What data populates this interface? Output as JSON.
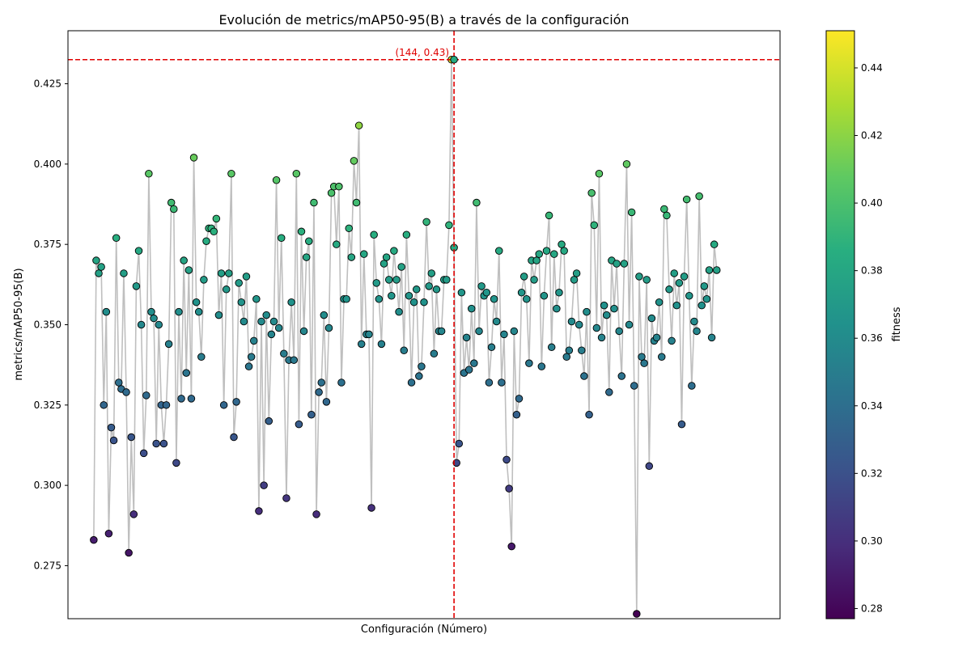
{
  "chart_data": {
    "type": "scatter",
    "title": "Evolución de metrics/mAP50-95(B) a través de la configuración",
    "xlabel": "Configuración (Número)",
    "ylabel": "metrics/mAP50-95(B)",
    "colorbar_label": "fitness",
    "colormap": "viridis",
    "color_range": [
      0.277,
      0.451
    ],
    "colorbar_ticks": [
      "0.28",
      "0.30",
      "0.32",
      "0.34",
      "0.36",
      "0.38",
      "0.40",
      "0.42",
      "0.44"
    ],
    "ylim": [
      0.2585,
      0.4415
    ],
    "xlim": [
      -10.3,
      274.3
    ],
    "yticks": [
      "0.275",
      "0.300",
      "0.325",
      "0.350",
      "0.375",
      "0.400",
      "0.425"
    ],
    "x_ticks_shown": false,
    "grid": false,
    "line_color": "#bfbfbf",
    "highlight": {
      "x": 144,
      "y": 0.4325,
      "label": "(144, 0.43)",
      "color": "#e00000",
      "style": "dashed crosshair"
    },
    "y": [
      0.283,
      0.37,
      0.366,
      0.368,
      0.325,
      0.354,
      0.285,
      0.318,
      0.314,
      0.377,
      0.332,
      0.33,
      0.366,
      0.329,
      0.279,
      0.315,
      0.291,
      0.362,
      0.373,
      0.35,
      0.31,
      0.328,
      0.397,
      0.354,
      0.352,
      0.313,
      0.35,
      0.325,
      0.313,
      0.325,
      0.344,
      0.388,
      0.386,
      0.307,
      0.354,
      0.327,
      0.37,
      0.335,
      0.367,
      0.327,
      0.402,
      0.357,
      0.354,
      0.34,
      0.364,
      0.376,
      0.38,
      0.38,
      0.379,
      0.383,
      0.353,
      0.366,
      0.325,
      0.361,
      0.366,
      0.397,
      0.315,
      0.326,
      0.363,
      0.357,
      0.351,
      0.365,
      0.337,
      0.34,
      0.345,
      0.358,
      0.292,
      0.351,
      0.3,
      0.353,
      0.32,
      0.347,
      0.351,
      0.395,
      0.349,
      0.377,
      0.341,
      0.296,
      0.339,
      0.357,
      0.339,
      0.397,
      0.319,
      0.379,
      0.348,
      0.371,
      0.376,
      0.322,
      0.388,
      0.291,
      0.329,
      0.332,
      0.353,
      0.326,
      0.349,
      0.391,
      0.393,
      0.375,
      0.393,
      0.332,
      0.358,
      0.358,
      0.38,
      0.371,
      0.401,
      0.388,
      0.412,
      0.344,
      0.372,
      0.347,
      0.347,
      0.293,
      0.378,
      0.363,
      0.358,
      0.344,
      0.369,
      0.371,
      0.364,
      0.359,
      0.373,
      0.364,
      0.354,
      0.368,
      0.342,
      0.378,
      0.359,
      0.332,
      0.357,
      0.361,
      0.334,
      0.337,
      0.357,
      0.382,
      0.362,
      0.366,
      0.341,
      0.361,
      0.348,
      0.348,
      0.364,
      0.364,
      0.381,
      0.4325,
      0.374,
      0.307,
      0.313,
      0.36,
      0.335,
      0.346,
      0.336,
      0.355,
      0.338,
      0.388,
      0.348,
      0.362,
      0.359,
      0.36,
      0.332,
      0.343,
      0.358,
      0.351,
      0.373,
      0.332,
      0.347,
      0.308,
      0.299,
      0.281,
      0.348,
      0.322,
      0.327,
      0.36,
      0.365,
      0.358,
      0.338,
      0.37,
      0.364,
      0.37,
      0.372,
      0.337,
      0.359,
      0.373,
      0.384,
      0.343,
      0.372,
      0.355,
      0.36,
      0.375,
      0.373,
      0.34,
      0.342,
      0.351,
      0.364,
      0.366,
      0.35,
      0.342,
      0.334,
      0.354,
      0.322,
      0.391,
      0.381,
      0.349,
      0.397,
      0.346,
      0.356,
      0.353,
      0.329,
      0.37,
      0.355,
      0.369,
      0.348,
      0.334,
      0.369,
      0.4,
      0.35,
      0.385,
      0.331,
      0.26,
      0.365,
      0.34,
      0.338,
      0.364,
      0.306,
      0.352,
      0.345,
      0.346,
      0.357,
      0.34,
      0.386,
      0.384,
      0.361,
      0.345,
      0.366,
      0.356,
      0.363,
      0.319,
      0.365,
      0.389,
      0.359,
      0.331,
      0.351,
      0.348,
      0.39,
      0.356,
      0.362,
      0.358,
      0.367,
      0.346,
      0.375,
      0.367
    ],
    "fitness": [
      0.291,
      0.378,
      0.375,
      0.376,
      0.334,
      0.362,
      0.293,
      0.327,
      0.322,
      0.386,
      0.34,
      0.338,
      0.374,
      0.337,
      0.287,
      0.323,
      0.3,
      0.37,
      0.381,
      0.358,
      0.318,
      0.337,
      0.405,
      0.362,
      0.361,
      0.321,
      0.358,
      0.333,
      0.321,
      0.334,
      0.352,
      0.396,
      0.394,
      0.315,
      0.362,
      0.336,
      0.378,
      0.344,
      0.375,
      0.336,
      0.41,
      0.365,
      0.362,
      0.349,
      0.372,
      0.384,
      0.388,
      0.388,
      0.387,
      0.391,
      0.361,
      0.374,
      0.334,
      0.369,
      0.374,
      0.405,
      0.323,
      0.335,
      0.371,
      0.366,
      0.359,
      0.373,
      0.345,
      0.348,
      0.353,
      0.367,
      0.3,
      0.359,
      0.308,
      0.361,
      0.329,
      0.355,
      0.359,
      0.404,
      0.357,
      0.385,
      0.349,
      0.304,
      0.347,
      0.365,
      0.347,
      0.405,
      0.327,
      0.387,
      0.356,
      0.379,
      0.384,
      0.33,
      0.396,
      0.299,
      0.337,
      0.341,
      0.361,
      0.335,
      0.357,
      0.4,
      0.401,
      0.383,
      0.401,
      0.341,
      0.366,
      0.366,
      0.388,
      0.379,
      0.409,
      0.396,
      0.421,
      0.352,
      0.38,
      0.355,
      0.355,
      0.301,
      0.386,
      0.371,
      0.366,
      0.352,
      0.377,
      0.379,
      0.372,
      0.367,
      0.382,
      0.372,
      0.362,
      0.376,
      0.35,
      0.386,
      0.367,
      0.341,
      0.365,
      0.369,
      0.343,
      0.345,
      0.365,
      0.39,
      0.37,
      0.374,
      0.349,
      0.369,
      0.356,
      0.356,
      0.372,
      0.372,
      0.389,
      0.441,
      0.382,
      0.315,
      0.322,
      0.368,
      0.344,
      0.354,
      0.344,
      0.363,
      0.346,
      0.396,
      0.356,
      0.37,
      0.367,
      0.368,
      0.34,
      0.351,
      0.366,
      0.359,
      0.382,
      0.34,
      0.355,
      0.316,
      0.307,
      0.289,
      0.356,
      0.33,
      0.336,
      0.368,
      0.373,
      0.366,
      0.346,
      0.378,
      0.372,
      0.378,
      0.38,
      0.345,
      0.367,
      0.381,
      0.392,
      0.351,
      0.38,
      0.363,
      0.368,
      0.383,
      0.381,
      0.348,
      0.35,
      0.359,
      0.372,
      0.374,
      0.358,
      0.35,
      0.342,
      0.362,
      0.33,
      0.399,
      0.389,
      0.357,
      0.405,
      0.354,
      0.364,
      0.361,
      0.337,
      0.378,
      0.363,
      0.377,
      0.356,
      0.342,
      0.377,
      0.408,
      0.358,
      0.393,
      0.339,
      0.277,
      0.373,
      0.348,
      0.346,
      0.372,
      0.314,
      0.36,
      0.353,
      0.354,
      0.365,
      0.348,
      0.394,
      0.392,
      0.369,
      0.353,
      0.374,
      0.364,
      0.371,
      0.327,
      0.373,
      0.397,
      0.367,
      0.339,
      0.359,
      0.356,
      0.398,
      0.364,
      0.37,
      0.366,
      0.375,
      0.354,
      0.383,
      0.375
    ]
  }
}
